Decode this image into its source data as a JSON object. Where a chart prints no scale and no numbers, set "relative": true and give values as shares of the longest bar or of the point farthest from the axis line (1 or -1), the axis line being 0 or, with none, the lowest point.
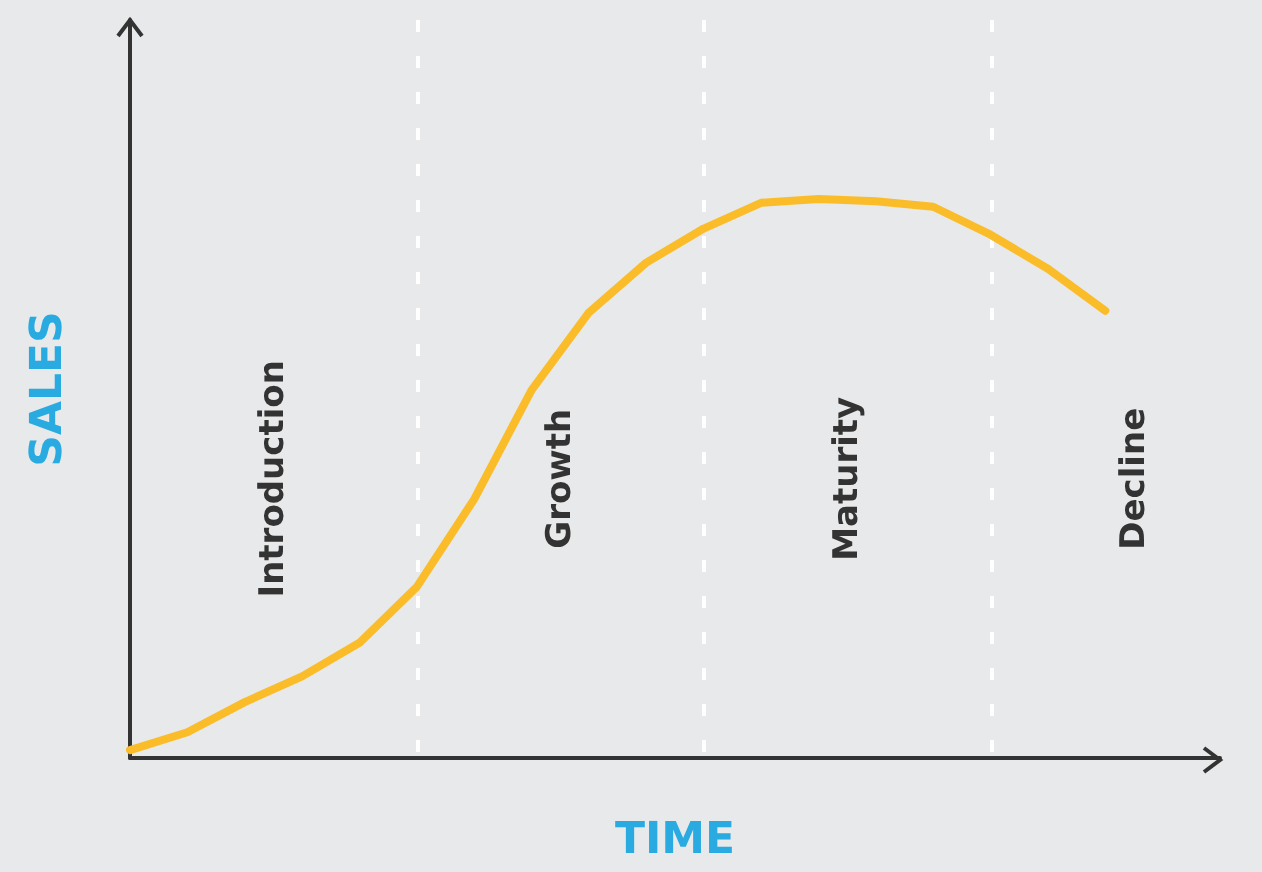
{
  "chart_data": {
    "type": "line",
    "relative": true,
    "xlabel": "TIME",
    "ylabel": "SALES",
    "grid": "x",
    "marker": "none",
    "line_style": "solid",
    "categories": [
      null,
      null,
      null,
      null,
      null,
      null,
      null,
      null,
      null,
      null,
      null,
      null,
      null,
      null,
      null,
      null,
      null,
      null,
      null,
      null
    ],
    "series": [
      {
        "color": "#fbbc2a",
        "values": [
          0.014,
          0.046,
          0.1,
          0.146,
          0.206,
          0.306,
          0.463,
          0.658,
          0.797,
          0.886,
          0.947,
          0.993,
          1,
          0.996,
          0.986,
          0.936,
          0.875,
          0.8,
          null,
          null
        ]
      }
    ],
    "annotations": [
      "Introduction",
      "Growth",
      "Maturity",
      "Decline"
    ]
  }
}
